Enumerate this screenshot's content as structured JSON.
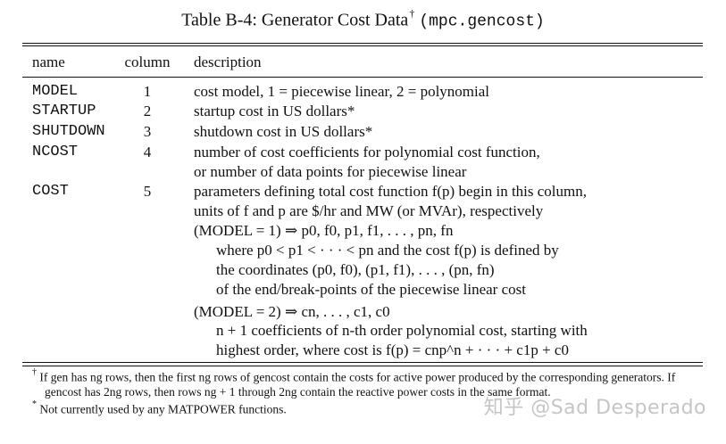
{
  "caption": {
    "prefix": "Table B-4: Generator Cost Data",
    "dagger": "†",
    "code": "(mpc.gencost)"
  },
  "table": {
    "headers": {
      "name": "name",
      "column": "column",
      "description": "description"
    },
    "rows": [
      {
        "name": "MODEL",
        "column": "1",
        "desc_lines": [
          "cost model, 1 = piecewise linear, 2 = polynomial"
        ]
      },
      {
        "name": "STARTUP",
        "column": "2",
        "desc_lines": [
          "startup cost in US dollars*"
        ]
      },
      {
        "name": "SHUTDOWN",
        "column": "3",
        "desc_lines": [
          "shutdown cost in US dollars*"
        ]
      },
      {
        "name": "NCOST",
        "column": "4",
        "desc_lines": [
          "number of cost coefficients for polynomial cost function,",
          "or number of data points for piecewise linear"
        ]
      },
      {
        "name": "COST",
        "column": "5",
        "desc_lines": [
          "parameters defining total cost function f(p) begin in this column,",
          "units of f and p are $/hr and MW (or MVAr), respectively",
          "(MODEL = 1) ⇒   p0, f0, p1, f1, . . . , pn, fn",
          "where p0 < p1 < · · · < pn and the cost f(p) is defined by",
          "the coordinates (p0, f0), (p1, f1), . . . , (pn, fn)",
          "of the end/break-points of the piecewise linear cost",
          "(MODEL = 2) ⇒   cn, . . . , c1, c0",
          "n + 1 coefficients of n-th order polynomial cost, starting with",
          "highest order, where cost is f(p) = cnp^n + · · · + c1p + c0"
        ]
      }
    ]
  },
  "footnotes": {
    "dagger_note": "If gen has ng rows, then the first ng rows of gencost contain the costs for active power produced by the corresponding generators. If gencost has 2ng rows, then rows ng + 1 through 2ng contain the reactive power costs in the same format.",
    "star_note": "Not currently used by any MATPOWER functions.",
    "dagger_symbol": "†",
    "star_symbol": "*"
  },
  "watermark": "知乎 @Sad Desperado"
}
